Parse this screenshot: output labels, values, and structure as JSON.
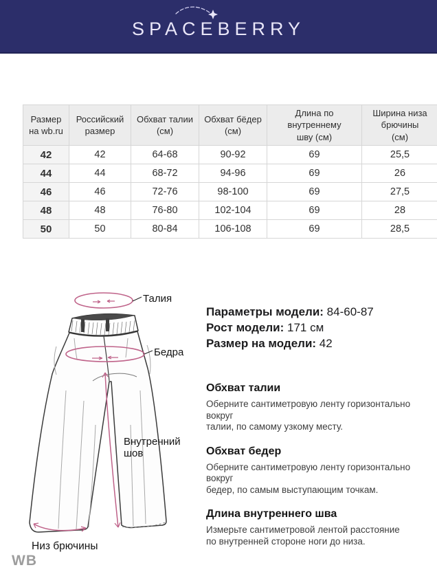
{
  "colors": {
    "brand_navy": "#2c2e6a",
    "logo_text": "#e9e6f8",
    "accent_pink": "#bf6289"
  },
  "header": {
    "logo_text": "SPACEBERRY"
  },
  "size_table": {
    "columns": [
      "Размер\nна wb.ru",
      "Российский\nразмер",
      "Обхват талии\n(см)",
      "Обхват бёдер\n(см)",
      "Длина по\nвнутреннему\nшву (см)",
      "Ширина низа\nбрючины\n(см)"
    ],
    "rows": [
      [
        "42",
        "42",
        "64-68",
        "90-92",
        "69",
        "25,5"
      ],
      [
        "44",
        "44",
        "68-72",
        "94-96",
        "69",
        "26"
      ],
      [
        "46",
        "46",
        "72-76",
        "98-100",
        "69",
        "27,5"
      ],
      [
        "48",
        "48",
        "76-80",
        "102-104",
        "69",
        "28"
      ],
      [
        "50",
        "50",
        "80-84",
        "106-108",
        "69",
        "28,5"
      ]
    ]
  },
  "diagram": {
    "labels": {
      "waist": "Талия",
      "hips": "Бедра",
      "inseam": "Внутренний шов",
      "hem": "Низ брючины"
    }
  },
  "model_info": [
    {
      "label": "Параметры модели:",
      "value": "84-60-87"
    },
    {
      "label": "Рост модели:",
      "value": "171 см"
    },
    {
      "label": "Размер на модели:",
      "value": "42"
    }
  ],
  "measure_guide": [
    {
      "title": "Обхват талии",
      "text": "Оберните сантиметровую ленту горизонтально вокруг\nталии, по самому узкому месту."
    },
    {
      "title": "Обхват бедер",
      "text": "Оберните сантиметровую ленту горизонтально вокруг\nбедер, по самым выступающим точкам."
    },
    {
      "title": "Длина внутреннего шва",
      "text": "Измерьте сантиметровой лентой расстояние\nпо внутренней стороне ноги до низа."
    }
  ],
  "footer": {
    "watermark": "WB"
  }
}
